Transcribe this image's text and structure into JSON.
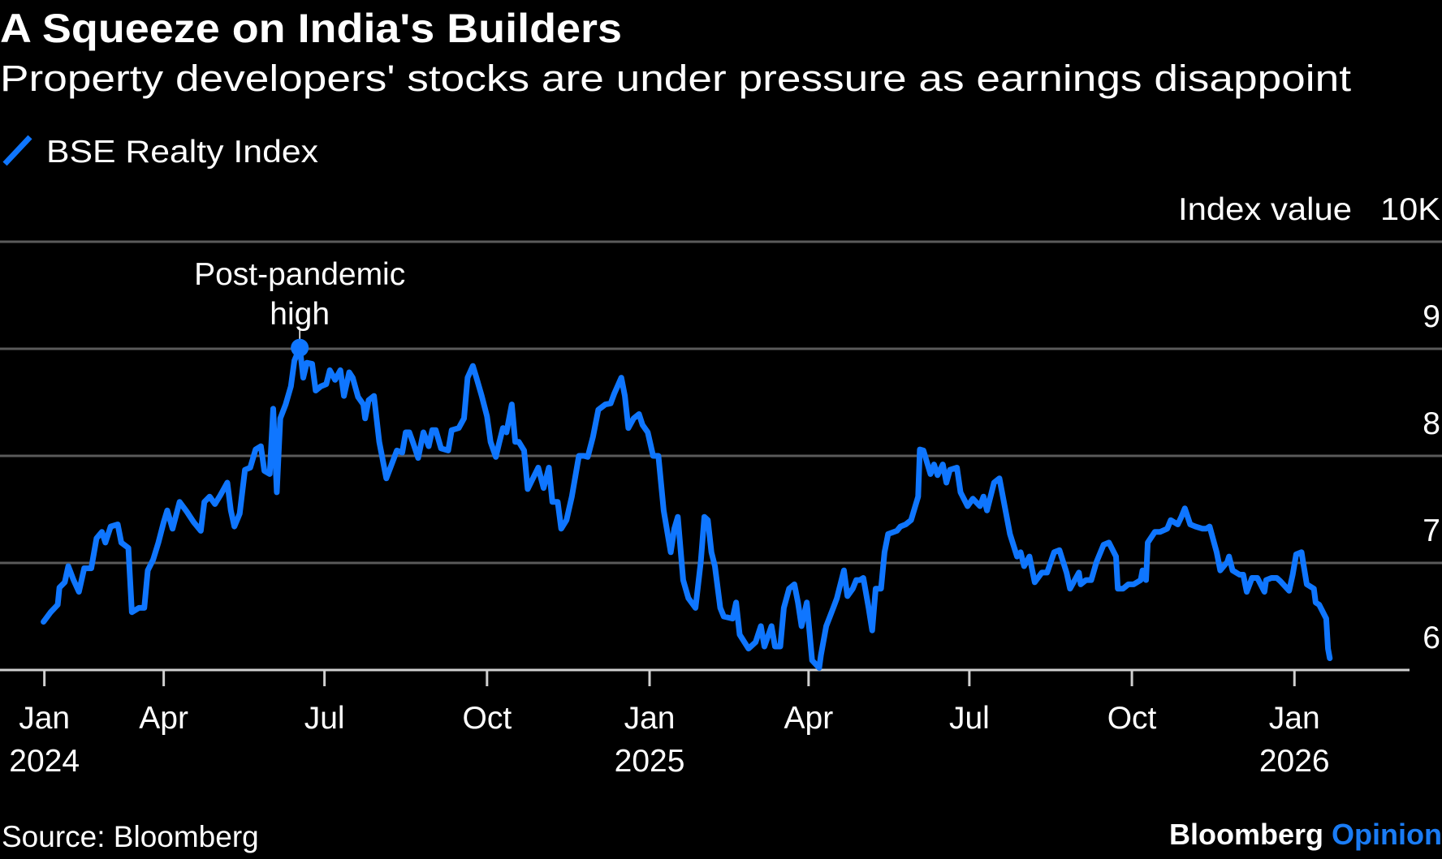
{
  "chart_data": {
    "type": "line",
    "title": "A Squeeze on India's Builders",
    "subtitle": "Property developers' stocks are under pressure as earnings disappoint",
    "ylabel": "Index value",
    "y_unit_label": "10K",
    "ylim": [
      6000,
      10000
    ],
    "y_ticks": [
      {
        "value": 9000,
        "label": "9"
      },
      {
        "value": 8000,
        "label": "8"
      },
      {
        "value": 7000,
        "label": "7"
      },
      {
        "value": 6000,
        "label": "6"
      }
    ],
    "x_ticks": [
      {
        "date": "2024-01-01",
        "label": "Jan",
        "sublabel": "2024"
      },
      {
        "date": "2024-04-01",
        "label": "Apr",
        "sublabel": ""
      },
      {
        "date": "2024-07-01",
        "label": "Jul",
        "sublabel": ""
      },
      {
        "date": "2024-10-01",
        "label": "Oct",
        "sublabel": ""
      },
      {
        "date": "2025-01-01",
        "label": "Jan",
        "sublabel": "2025"
      },
      {
        "date": "2025-04-01",
        "label": "Apr",
        "sublabel": ""
      },
      {
        "date": "2025-07-01",
        "label": "Jul",
        "sublabel": ""
      },
      {
        "date": "2025-10-01",
        "label": "Oct",
        "sublabel": ""
      },
      {
        "date": "2026-01-01",
        "label": "Jan",
        "sublabel": "2026"
      }
    ],
    "grid": true,
    "legend_position": "top-left",
    "annotation": {
      "line1": "Post-pandemic",
      "line2": "high",
      "date": "2024-06-17",
      "value": 9010
    },
    "series": [
      {
        "name": "BSE Realty Index",
        "color": "#0f76ff",
        "points": [
          [
            "2024-01-24",
            6450
          ],
          [
            "2024-01-28",
            6540
          ],
          [
            "2024-02-01",
            6610
          ],
          [
            "2024-02-02",
            6770
          ],
          [
            "2024-02-05",
            6820
          ],
          [
            "2024-02-07",
            6970
          ],
          [
            "2024-02-10",
            6840
          ],
          [
            "2024-02-13",
            6730
          ],
          [
            "2024-02-16",
            6950
          ],
          [
            "2024-02-20",
            6950
          ],
          [
            "2024-02-23",
            7230
          ],
          [
            "2024-02-26",
            7290
          ],
          [
            "2024-02-28",
            7190
          ],
          [
            "2024-03-02",
            7340
          ],
          [
            "2024-03-06",
            7360
          ],
          [
            "2024-03-08",
            7190
          ],
          [
            "2024-03-12",
            7140
          ],
          [
            "2024-03-14",
            6540
          ],
          [
            "2024-03-18",
            6580
          ],
          [
            "2024-03-21",
            6580
          ],
          [
            "2024-03-23",
            6930
          ],
          [
            "2024-03-26",
            7030
          ],
          [
            "2024-03-29",
            7190
          ],
          [
            "2024-04-01",
            7380
          ],
          [
            "2024-04-03",
            7490
          ],
          [
            "2024-04-06",
            7320
          ],
          [
            "2024-04-10",
            7570
          ],
          [
            "2024-04-14",
            7480
          ],
          [
            "2024-04-18",
            7380
          ],
          [
            "2024-04-22",
            7300
          ],
          [
            "2024-04-24",
            7570
          ],
          [
            "2024-04-27",
            7620
          ],
          [
            "2024-04-30",
            7550
          ],
          [
            "2024-05-03",
            7630
          ],
          [
            "2024-05-07",
            7750
          ],
          [
            "2024-05-09",
            7490
          ],
          [
            "2024-05-11",
            7340
          ],
          [
            "2024-05-14",
            7460
          ],
          [
            "2024-05-17",
            7870
          ],
          [
            "2024-05-20",
            7890
          ],
          [
            "2024-05-23",
            8060
          ],
          [
            "2024-05-26",
            8090
          ],
          [
            "2024-05-28",
            7860
          ],
          [
            "2024-05-31",
            7830
          ],
          [
            "2024-06-02",
            8440
          ],
          [
            "2024-06-04",
            7660
          ],
          [
            "2024-06-06",
            8350
          ],
          [
            "2024-06-09",
            8480
          ],
          [
            "2024-06-12",
            8650
          ],
          [
            "2024-06-14",
            8890
          ],
          [
            "2024-06-17",
            9010
          ],
          [
            "2024-06-19",
            8730
          ],
          [
            "2024-06-21",
            8870
          ],
          [
            "2024-06-24",
            8860
          ],
          [
            "2024-06-26",
            8610
          ],
          [
            "2024-06-29",
            8650
          ],
          [
            "2024-07-02",
            8670
          ],
          [
            "2024-07-04",
            8800
          ],
          [
            "2024-07-07",
            8710
          ],
          [
            "2024-07-10",
            8800
          ],
          [
            "2024-07-12",
            8560
          ],
          [
            "2024-07-15",
            8780
          ],
          [
            "2024-07-17",
            8730
          ],
          [
            "2024-07-20",
            8550
          ],
          [
            "2024-07-23",
            8480
          ],
          [
            "2024-07-24",
            8350
          ],
          [
            "2024-07-26",
            8520
          ],
          [
            "2024-07-29",
            8560
          ],
          [
            "2024-08-01",
            8130
          ],
          [
            "2024-08-05",
            7790
          ],
          [
            "2024-08-08",
            7920
          ],
          [
            "2024-08-11",
            8050
          ],
          [
            "2024-08-14",
            8030
          ],
          [
            "2024-08-16",
            8220
          ],
          [
            "2024-08-18",
            8220
          ],
          [
            "2024-08-20",
            8130
          ],
          [
            "2024-08-23",
            7980
          ],
          [
            "2024-08-26",
            8220
          ],
          [
            "2024-08-29",
            8090
          ],
          [
            "2024-08-31",
            8240
          ],
          [
            "2024-09-02",
            8240
          ],
          [
            "2024-09-05",
            8070
          ],
          [
            "2024-09-09",
            8050
          ],
          [
            "2024-09-11",
            8240
          ],
          [
            "2024-09-15",
            8260
          ],
          [
            "2024-09-18",
            8350
          ],
          [
            "2024-09-20",
            8730
          ],
          [
            "2024-09-23",
            8840
          ],
          [
            "2024-09-25",
            8730
          ],
          [
            "2024-09-28",
            8560
          ],
          [
            "2024-10-01",
            8370
          ],
          [
            "2024-10-03",
            8130
          ],
          [
            "2024-10-06",
            7990
          ],
          [
            "2024-10-08",
            8130
          ],
          [
            "2024-10-10",
            8260
          ],
          [
            "2024-10-12",
            8220
          ],
          [
            "2024-10-15",
            8480
          ],
          [
            "2024-10-17",
            8130
          ],
          [
            "2024-10-19",
            8130
          ],
          [
            "2024-10-22",
            8050
          ],
          [
            "2024-10-24",
            7690
          ],
          [
            "2024-10-27",
            7790
          ],
          [
            "2024-10-30",
            7890
          ],
          [
            "2024-11-02",
            7700
          ],
          [
            "2024-11-05",
            7890
          ],
          [
            "2024-11-07",
            7570
          ],
          [
            "2024-11-10",
            7570
          ],
          [
            "2024-11-12",
            7320
          ],
          [
            "2024-11-15",
            7400
          ],
          [
            "2024-11-18",
            7620
          ],
          [
            "2024-11-22",
            8000
          ],
          [
            "2024-11-25",
            8000
          ],
          [
            "2024-11-27",
            7990
          ],
          [
            "2024-11-30",
            8180
          ],
          [
            "2024-12-03",
            8430
          ],
          [
            "2024-12-07",
            8480
          ],
          [
            "2024-12-10",
            8490
          ],
          [
            "2024-12-12",
            8580
          ],
          [
            "2024-12-16",
            8730
          ],
          [
            "2024-12-18",
            8560
          ],
          [
            "2024-12-20",
            8260
          ],
          [
            "2024-12-23",
            8350
          ],
          [
            "2024-12-26",
            8390
          ],
          [
            "2024-12-28",
            8290
          ],
          [
            "2024-12-31",
            8220
          ],
          [
            "2025-01-03",
            8000
          ],
          [
            "2025-01-06",
            8000
          ],
          [
            "2025-01-09",
            7490
          ],
          [
            "2025-01-13",
            7100
          ],
          [
            "2025-01-15",
            7320
          ],
          [
            "2025-01-17",
            7430
          ],
          [
            "2025-01-20",
            6840
          ],
          [
            "2025-01-23",
            6670
          ],
          [
            "2025-01-27",
            6580
          ],
          [
            "2025-01-30",
            7010
          ],
          [
            "2025-02-01",
            7430
          ],
          [
            "2025-02-03",
            7400
          ],
          [
            "2025-02-05",
            7100
          ],
          [
            "2025-02-07",
            6970
          ],
          [
            "2025-02-10",
            6580
          ],
          [
            "2025-02-12",
            6500
          ],
          [
            "2025-02-17",
            6480
          ],
          [
            "2025-02-19",
            6630
          ],
          [
            "2025-02-21",
            6330
          ],
          [
            "2025-02-26",
            6200
          ],
          [
            "2025-03-02",
            6260
          ],
          [
            "2025-03-05",
            6410
          ],
          [
            "2025-03-07",
            6220
          ],
          [
            "2025-03-11",
            6410
          ],
          [
            "2025-03-13",
            6220
          ],
          [
            "2025-03-16",
            6220
          ],
          [
            "2025-03-18",
            6580
          ],
          [
            "2025-03-21",
            6760
          ],
          [
            "2025-03-24",
            6800
          ],
          [
            "2025-03-26",
            6630
          ],
          [
            "2025-03-28",
            6410
          ],
          [
            "2025-03-31",
            6630
          ],
          [
            "2025-04-03",
            6090
          ],
          [
            "2025-04-07",
            6020
          ],
          [
            "2025-04-08",
            6140
          ],
          [
            "2025-04-11",
            6410
          ],
          [
            "2025-04-15",
            6580
          ],
          [
            "2025-04-17",
            6670
          ],
          [
            "2025-04-21",
            6930
          ],
          [
            "2025-04-23",
            6690
          ],
          [
            "2025-04-26",
            6760
          ],
          [
            "2025-04-28",
            6840
          ],
          [
            "2025-04-30",
            6840
          ],
          [
            "2025-05-02",
            6860
          ],
          [
            "2025-05-05",
            6580
          ],
          [
            "2025-05-07",
            6370
          ],
          [
            "2025-05-09",
            6760
          ],
          [
            "2025-05-12",
            6760
          ],
          [
            "2025-05-14",
            7100
          ],
          [
            "2025-05-16",
            7270
          ],
          [
            "2025-05-21",
            7300
          ],
          [
            "2025-05-23",
            7340
          ],
          [
            "2025-05-26",
            7360
          ],
          [
            "2025-05-29",
            7400
          ],
          [
            "2025-06-02",
            7620
          ],
          [
            "2025-06-03",
            8060
          ],
          [
            "2025-06-05",
            8050
          ],
          [
            "2025-06-09",
            7830
          ],
          [
            "2025-06-11",
            7920
          ],
          [
            "2025-06-13",
            7820
          ],
          [
            "2025-06-16",
            7920
          ],
          [
            "2025-06-18",
            7750
          ],
          [
            "2025-06-20",
            7870
          ],
          [
            "2025-06-24",
            7890
          ],
          [
            "2025-06-26",
            7660
          ],
          [
            "2025-06-30",
            7530
          ],
          [
            "2025-07-03",
            7600
          ],
          [
            "2025-07-07",
            7530
          ],
          [
            "2025-07-09",
            7620
          ],
          [
            "2025-07-11",
            7490
          ],
          [
            "2025-07-15",
            7750
          ],
          [
            "2025-07-18",
            7790
          ],
          [
            "2025-07-21",
            7530
          ],
          [
            "2025-07-24",
            7270
          ],
          [
            "2025-07-28",
            7060
          ],
          [
            "2025-07-30",
            7100
          ],
          [
            "2025-08-01",
            6970
          ],
          [
            "2025-08-04",
            7060
          ],
          [
            "2025-08-07",
            6820
          ],
          [
            "2025-08-11",
            6910
          ],
          [
            "2025-08-14",
            6910
          ],
          [
            "2025-08-18",
            7100
          ],
          [
            "2025-08-21",
            7120
          ],
          [
            "2025-08-25",
            6910
          ],
          [
            "2025-08-27",
            6760
          ],
          [
            "2025-09-01",
            6910
          ],
          [
            "2025-09-02",
            6800
          ],
          [
            "2025-09-05",
            6840
          ],
          [
            "2025-09-08",
            6840
          ],
          [
            "2025-09-11",
            7010
          ],
          [
            "2025-09-15",
            7170
          ],
          [
            "2025-09-18",
            7190
          ],
          [
            "2025-09-22",
            7060
          ],
          [
            "2025-09-23",
            6760
          ],
          [
            "2025-09-26",
            6760
          ],
          [
            "2025-09-29",
            6800
          ],
          [
            "2025-10-02",
            6800
          ],
          [
            "2025-10-06",
            6840
          ],
          [
            "2025-10-07",
            6930
          ],
          [
            "2025-10-09",
            6840
          ],
          [
            "2025-10-10",
            7190
          ],
          [
            "2025-10-14",
            7290
          ],
          [
            "2025-10-17",
            7290
          ],
          [
            "2025-10-21",
            7320
          ],
          [
            "2025-10-23",
            7400
          ],
          [
            "2025-10-27",
            7360
          ],
          [
            "2025-10-29",
            7430
          ],
          [
            "2025-10-31",
            7510
          ],
          [
            "2025-11-03",
            7360
          ],
          [
            "2025-11-06",
            7340
          ],
          [
            "2025-11-10",
            7320
          ],
          [
            "2025-11-12",
            7320
          ],
          [
            "2025-11-14",
            7340
          ],
          [
            "2025-11-18",
            7100
          ],
          [
            "2025-11-20",
            6930
          ],
          [
            "2025-11-24",
            7010
          ],
          [
            "2025-11-25",
            7060
          ],
          [
            "2025-11-27",
            6930
          ],
          [
            "2025-12-01",
            6890
          ],
          [
            "2025-12-03",
            6890
          ],
          [
            "2025-12-05",
            6730
          ],
          [
            "2025-12-08",
            6860
          ],
          [
            "2025-12-11",
            6860
          ],
          [
            "2025-12-15",
            6730
          ],
          [
            "2025-12-16",
            6840
          ],
          [
            "2025-12-19",
            6860
          ],
          [
            "2025-12-22",
            6860
          ],
          [
            "2025-12-24",
            6830
          ],
          [
            "2025-12-29",
            6740
          ],
          [
            "2025-12-31",
            6890
          ],
          [
            "2026-01-02",
            7080
          ],
          [
            "2026-01-05",
            7100
          ],
          [
            "2026-01-06",
            7000
          ],
          [
            "2026-01-08",
            6800
          ],
          [
            "2026-01-12",
            6760
          ],
          [
            "2026-01-13",
            6630
          ],
          [
            "2026-01-15",
            6610
          ],
          [
            "2026-01-19",
            6480
          ],
          [
            "2026-01-20",
            6200
          ],
          [
            "2026-01-21",
            6110
          ]
        ]
      }
    ]
  },
  "footer": {
    "source": "Source: Bloomberg",
    "brand_main": "Bloomberg",
    "brand_accent": "Opinion",
    "brand_accent_color": "#1a7cf5"
  }
}
